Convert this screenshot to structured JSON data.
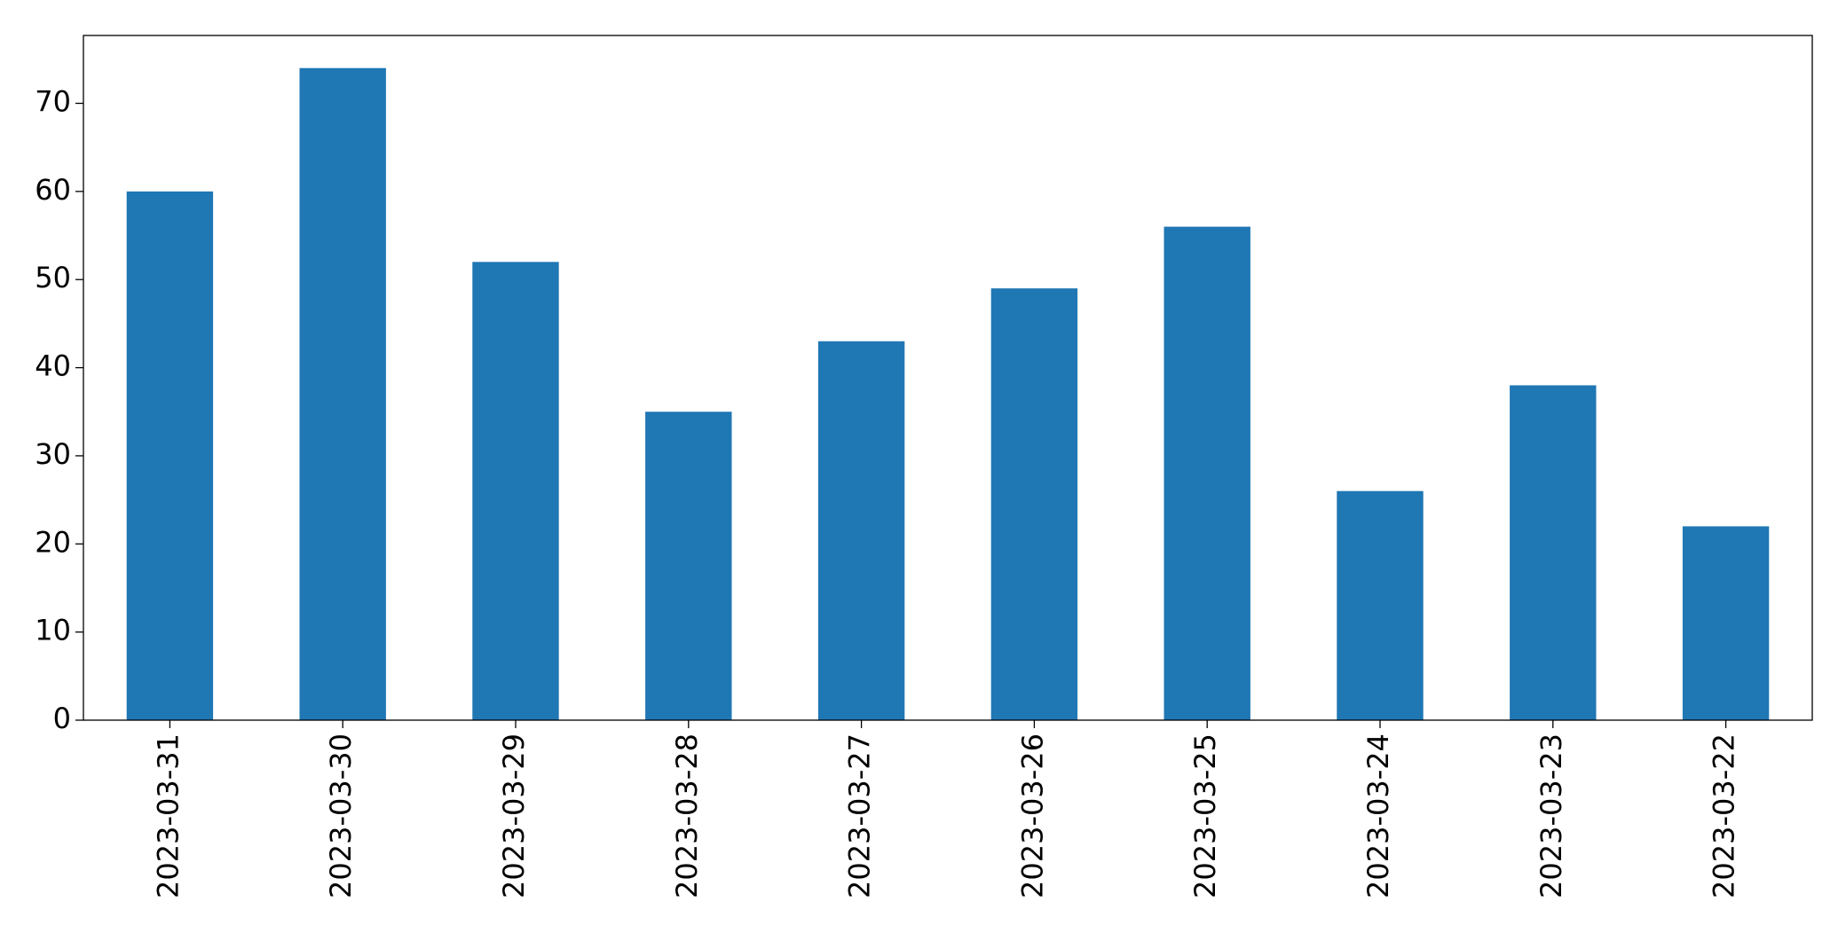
{
  "chart_data": {
    "type": "bar",
    "categories": [
      "2023-03-31",
      "2023-03-30",
      "2023-03-29",
      "2023-03-28",
      "2023-03-27",
      "2023-03-26",
      "2023-03-25",
      "2023-03-24",
      "2023-03-23",
      "2023-03-22"
    ],
    "values": [
      60,
      74,
      52,
      35,
      43,
      49,
      56,
      26,
      38,
      22
    ],
    "color": "#1f77b4",
    "ylim": [
      0,
      77.7
    ],
    "yticks": [
      0,
      10,
      20,
      30,
      40,
      50,
      60,
      70
    ],
    "grid": false
  }
}
